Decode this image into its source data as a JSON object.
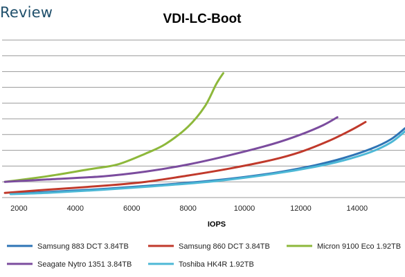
{
  "brand": {
    "text": "Review"
  },
  "chart_data": {
    "type": "line",
    "title": "VDI-LC-Boot",
    "xlabel": "IOPS",
    "ylabel": "",
    "xlim": [
      1400,
      15700
    ],
    "ylim": [
      0,
      10
    ],
    "x_ticks": [
      2000,
      4000,
      6000,
      8000,
      10000,
      12000,
      14000
    ],
    "grid": "horizontal",
    "legend_position": "bottom",
    "series": [
      {
        "name": "Samsung 883 DCT 3.84TB",
        "color": "#2e74b5",
        "points": [
          [
            1700,
            0.25
          ],
          [
            3000,
            0.35
          ],
          [
            5000,
            0.55
          ],
          [
            7000,
            0.8
          ],
          [
            9000,
            1.1
          ],
          [
            11000,
            1.55
          ],
          [
            12500,
            2.05
          ],
          [
            13500,
            2.5
          ],
          [
            14500,
            3.1
          ],
          [
            15200,
            3.7
          ],
          [
            15700,
            4.4
          ]
        ]
      },
      {
        "name": "Samsung 860 DCT 3.84TB",
        "color": "#c0392b",
        "points": [
          [
            1500,
            0.3
          ],
          [
            3000,
            0.5
          ],
          [
            5000,
            0.75
          ],
          [
            6500,
            1.0
          ],
          [
            8000,
            1.4
          ],
          [
            9500,
            1.85
          ],
          [
            11000,
            2.4
          ],
          [
            12000,
            2.9
          ],
          [
            13000,
            3.6
          ],
          [
            13800,
            4.3
          ],
          [
            14300,
            4.8
          ]
        ]
      },
      {
        "name": "Micron 9100 Eco 1.92TB",
        "color": "#8db83b",
        "points": [
          [
            1500,
            1.0
          ],
          [
            3000,
            1.35
          ],
          [
            4500,
            1.8
          ],
          [
            5500,
            2.1
          ],
          [
            6500,
            2.8
          ],
          [
            7200,
            3.4
          ],
          [
            8000,
            4.5
          ],
          [
            8600,
            5.8
          ],
          [
            9000,
            7.2
          ],
          [
            9250,
            7.9
          ]
        ]
      },
      {
        "name": "Seagate Nytro 1351 3.84TB",
        "color": "#7b4c9e",
        "points": [
          [
            1500,
            1.0
          ],
          [
            3000,
            1.15
          ],
          [
            5000,
            1.35
          ],
          [
            6500,
            1.65
          ],
          [
            8000,
            2.1
          ],
          [
            9500,
            2.7
          ],
          [
            11000,
            3.4
          ],
          [
            12000,
            4.0
          ],
          [
            12800,
            4.6
          ],
          [
            13300,
            5.1
          ]
        ]
      },
      {
        "name": "Toshiba HK4R 1.92TB",
        "color": "#4db8d6",
        "points": [
          [
            1700,
            0.22
          ],
          [
            3000,
            0.3
          ],
          [
            5000,
            0.5
          ],
          [
            7000,
            0.75
          ],
          [
            9000,
            1.05
          ],
          [
            11000,
            1.5
          ],
          [
            12500,
            1.95
          ],
          [
            13500,
            2.35
          ],
          [
            14500,
            2.9
          ],
          [
            15200,
            3.5
          ],
          [
            15700,
            4.2
          ]
        ]
      }
    ]
  }
}
